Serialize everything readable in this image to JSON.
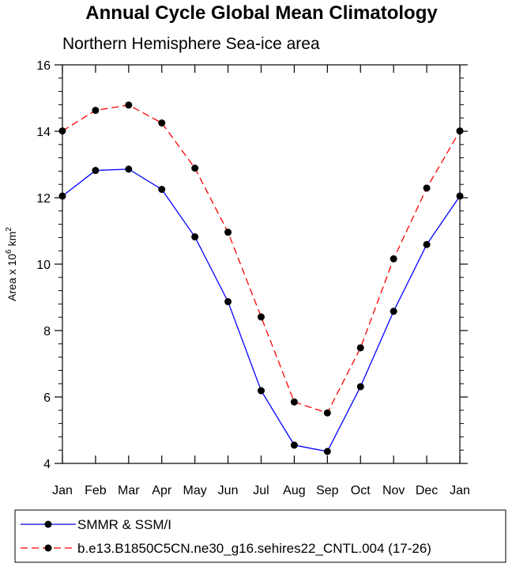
{
  "chart_data": {
    "type": "line",
    "title": "Annual Cycle Global Mean Climatology",
    "subtitle": "Northern Hemisphere Sea-ice area",
    "ylabel": {
      "prefix": "Area x 10",
      "exp1": "6",
      "mid": " km",
      "exp2": "2"
    },
    "categories": [
      "Jan",
      "Feb",
      "Mar",
      "Apr",
      "May",
      "Jun",
      "Jul",
      "Aug",
      "Sep",
      "Oct",
      "Nov",
      "Dec",
      "Jan"
    ],
    "ylim": [
      4,
      16
    ],
    "yticks": [
      4,
      6,
      8,
      10,
      12,
      14,
      16
    ],
    "yminor_step": 0.4,
    "grid": false,
    "legend_position": "bottom",
    "series": [
      {
        "name": "SMMR & SSM/I",
        "color": "#0000ff",
        "dash": "solid",
        "values": [
          12.05,
          12.82,
          12.86,
          12.25,
          10.82,
          8.87,
          6.19,
          4.55,
          4.36,
          6.31,
          8.58,
          10.59,
          12.05
        ]
      },
      {
        "name": "b.e13.B1850C5CN.ne30_g16.sehires22_CNTL.004 (17-26)",
        "color": "#ff0000",
        "dash": "dashed",
        "values": [
          14.01,
          14.63,
          14.79,
          14.25,
          12.89,
          10.96,
          8.41,
          5.85,
          5.52,
          7.48,
          10.16,
          12.29,
          14.01
        ]
      }
    ]
  }
}
